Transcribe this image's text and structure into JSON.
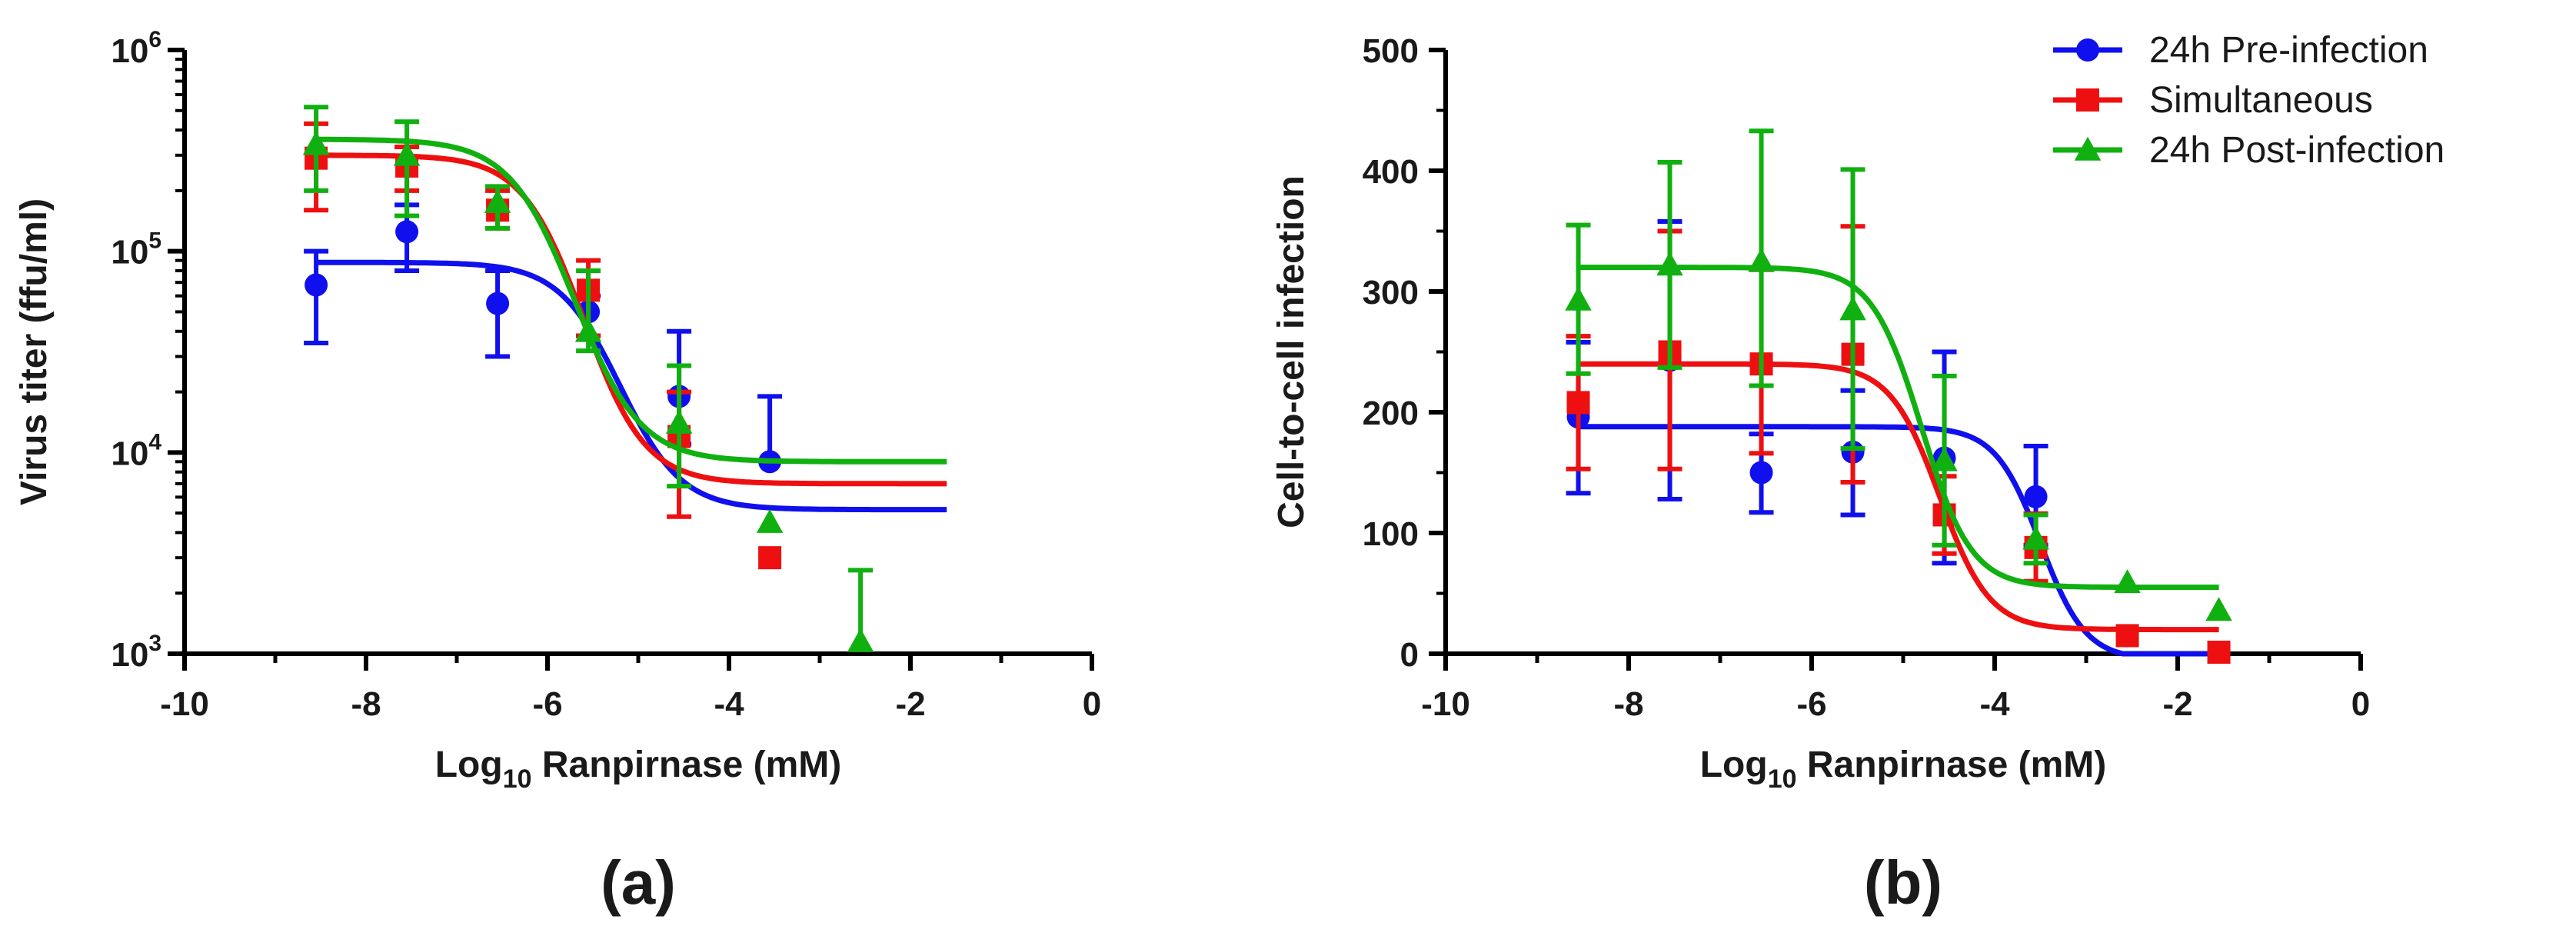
{
  "colors": {
    "blue": "#1010ee",
    "red": "#ee1010",
    "green": "#10b010",
    "axis": "#000000"
  },
  "chart_data": [
    {
      "id": "a",
      "type": "scatter",
      "panel_label": "(a)",
      "xlabel_prefix": "Log",
      "xlabel_sub": "10",
      "xlabel_suffix": " Ranpirnase (mM)",
      "ylabel": "Virus titer (ffu/ml)",
      "xlim": [
        -10,
        0
      ],
      "ylim": [
        1000,
        1000000
      ],
      "yscale": "log",
      "xticks": [
        -10,
        -8,
        -6,
        -4,
        -2,
        0
      ],
      "yticks": [
        {
          "value": 1000,
          "base": "10",
          "exp": "3"
        },
        {
          "value": 10000,
          "base": "10",
          "exp": "4"
        },
        {
          "value": 100000,
          "base": "10",
          "exp": "5"
        },
        {
          "value": 1000000,
          "base": "10",
          "exp": "6"
        }
      ],
      "series": [
        {
          "key": "blue",
          "marker": "circle",
          "x": [
            -8.55,
            -7.55,
            -6.55,
            -5.55,
            -4.55,
            -3.55
          ],
          "y": [
            68000,
            125000,
            55000,
            50000,
            19000,
            9000
          ],
          "err_low": [
            35000,
            80000,
            30000,
            38000,
            11000,
            null
          ],
          "err_high": [
            100000,
            170000,
            80000,
            60000,
            40000,
            19000
          ],
          "fit": {
            "top": 88000,
            "bottom": 5200,
            "logIC50": -5.2,
            "hill": 0.8,
            "x_range": [
              -8.55,
              -1.6
            ]
          }
        },
        {
          "key": "red",
          "marker": "square",
          "x": [
            -8.55,
            -7.55,
            -6.55,
            -5.55,
            -4.55,
            -3.55
          ],
          "y": [
            290000,
            265000,
            160000,
            64000,
            12000,
            3000
          ],
          "err_low": [
            160000,
            200000,
            130000,
            38000,
            4800,
            null
          ],
          "err_high": [
            430000,
            330000,
            200000,
            90000,
            20000,
            null
          ],
          "fit": {
            "top": 300000,
            "bottom": 7000,
            "logIC50": -5.6,
            "hill": 0.8,
            "x_range": [
              -8.55,
              -1.6
            ]
          }
        },
        {
          "key": "green",
          "marker": "triangle",
          "x": [
            -8.55,
            -7.55,
            -6.55,
            -5.55,
            -4.55,
            -3.55,
            -2.55
          ],
          "y": [
            340000,
            300000,
            175000,
            40000,
            14000,
            4500,
            1150
          ],
          "err_low": [
            200000,
            150000,
            130000,
            32000,
            6800,
            null,
            null
          ],
          "err_high": [
            520000,
            440000,
            210000,
            80000,
            27000,
            null,
            2600
          ],
          "fit": {
            "top": 360000,
            "bottom": 9000,
            "logIC50": -5.7,
            "hill": 0.75,
            "x_range": [
              -8.55,
              -1.6
            ]
          }
        }
      ]
    },
    {
      "id": "b",
      "type": "scatter",
      "panel_label": "(b)",
      "xlabel_prefix": "Log",
      "xlabel_sub": "10",
      "xlabel_suffix": " Ranpirnase (mM)",
      "ylabel": "Cell-to-cell infection",
      "xlim": [
        -10,
        0
      ],
      "ylim": [
        0,
        500
      ],
      "yscale": "linear",
      "xticks": [
        -10,
        -8,
        -6,
        -4,
        -2,
        0
      ],
      "yticks": [
        0,
        100,
        200,
        300,
        400,
        500
      ],
      "legend_position": "top-right",
      "legend": [
        {
          "key": "blue",
          "marker": "circle",
          "label": "24h Pre-infection"
        },
        {
          "key": "red",
          "marker": "square",
          "label": "Simultaneous"
        },
        {
          "key": "green",
          "marker": "triangle",
          "label": "24h Post-infection"
        }
      ],
      "series": [
        {
          "key": "blue",
          "marker": "circle",
          "x": [
            -8.55,
            -7.55,
            -6.55,
            -5.55,
            -4.55,
            -3.55,
            -2.55,
            -1.55
          ],
          "y": [
            196,
            243,
            150,
            167,
            162,
            130,
            15,
            0
          ],
          "err_low": [
            133,
            128,
            117,
            115,
            75,
            90,
            null,
            null
          ],
          "err_high": [
            258,
            358,
            182,
            218,
            250,
            172,
            null,
            null
          ],
          "fit": {
            "top": 188,
            "bottom": -5,
            "logIC50": -3.5,
            "hill": 1.1,
            "x_range": [
              -8.55,
              -1.55
            ]
          }
        },
        {
          "key": "red",
          "marker": "square",
          "x": [
            -8.55,
            -7.55,
            -6.55,
            -5.55,
            -4.55,
            -3.55,
            -2.55,
            -1.55
          ],
          "y": [
            208,
            250,
            240,
            248,
            115,
            88,
            15,
            0
          ],
          "err_low": [
            153,
            153,
            166,
            142,
            83,
            60,
            null,
            null
          ],
          "err_high": [
            263,
            350,
            318,
            354,
            147,
            116,
            null,
            null
          ],
          "fit": {
            "top": 240,
            "bottom": 20,
            "logIC50": -4.6,
            "hill": 1.0,
            "x_range": [
              -8.55,
              -1.55
            ]
          }
        },
        {
          "key": "green",
          "marker": "triangle",
          "x": [
            -8.55,
            -7.55,
            -6.55,
            -5.55,
            -4.55,
            -3.55,
            -2.55,
            -1.55
          ],
          "y": [
            293,
            322,
            325,
            285,
            160,
            95,
            59,
            36
          ],
          "err_low": [
            232,
            237,
            222,
            170,
            90,
            75,
            null,
            null
          ],
          "err_high": [
            355,
            407,
            433,
            401,
            230,
            115,
            null,
            null
          ],
          "fit": {
            "top": 320,
            "bottom": 55,
            "logIC50": -4.8,
            "hill": 1.0,
            "x_range": [
              -8.55,
              -1.55
            ]
          }
        }
      ]
    }
  ]
}
